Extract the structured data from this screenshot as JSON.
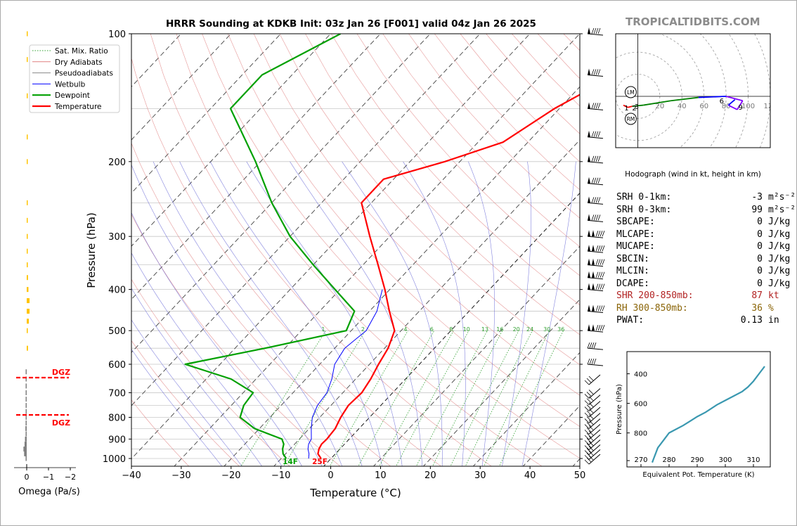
{
  "title": "HRRR Sounding at KDKB Init: 03z Jan 26 [F001] valid 04z Jan 26 2025",
  "brand": "TROPICALTIDBITS.COM",
  "axes": {
    "xlabel": "Temperature (°C)",
    "ylabel": "Pressure (hPa)",
    "x_ticks": [
      "−40",
      "−30",
      "−20",
      "−10",
      "0",
      "10",
      "20",
      "30",
      "40",
      "50"
    ],
    "y_ticks": [
      "100",
      "200",
      "300",
      "400",
      "500",
      "600",
      "700",
      "800",
      "900",
      "1000"
    ]
  },
  "legend": [
    "Sat. Mix. Ratio",
    "Dry Adiabats",
    "Pseudoadiabats",
    "Wetbulb",
    "Dewpoint",
    "Temperature"
  ],
  "surface_labels": {
    "dewpoint": "14F",
    "temperature": "25F"
  },
  "mixing_ratio_labels": [
    "1",
    "2",
    "4",
    "6",
    "8",
    "10",
    "13",
    "16",
    "20",
    "24",
    "30",
    "36"
  ],
  "omega": {
    "xlabel": "Omega (Pa/s)",
    "ticks": [
      "0",
      "−1",
      "−2"
    ],
    "dgz_label": "DGZ"
  },
  "hodograph": {
    "caption": "Hodograph (wind in kt, height in km)",
    "ring_labels": [
      "20",
      "40",
      "60",
      "80",
      "100",
      "120"
    ],
    "markers": [
      "LM",
      "RM"
    ],
    "height_labels": [
      "1",
      "2",
      "3",
      "6",
      "9"
    ]
  },
  "theta_e": {
    "xlabel": "Equivalent Pot. Temperature (K)",
    "ylabel": "Pressure (hPa)",
    "x_ticks": [
      "270",
      "280",
      "290",
      "300",
      "310"
    ],
    "y_ticks": [
      "400",
      "600",
      "800"
    ]
  },
  "stats": [
    {
      "label": "SRH 0-1km:",
      "value": "-3",
      "unit": "m²s⁻²",
      "color": "#000000"
    },
    {
      "label": "SRH 0-3km:",
      "value": "99",
      "unit": "m²s⁻²",
      "color": "#000000"
    },
    {
      "label": "SBCAPE:",
      "value": "0",
      "unit": "J/kg",
      "color": "#000000"
    },
    {
      "label": "MLCAPE:",
      "value": "0",
      "unit": "J/kg",
      "color": "#000000"
    },
    {
      "label": "MUCAPE:",
      "value": "0",
      "unit": "J/kg",
      "color": "#000000"
    },
    {
      "label": "SBCIN:",
      "value": "0",
      "unit": "J/kg",
      "color": "#000000"
    },
    {
      "label": "MLCIN:",
      "value": "0",
      "unit": "J/kg",
      "color": "#000000"
    },
    {
      "label": "DCAPE:",
      "value": "0",
      "unit": "J/kg",
      "color": "#000000"
    },
    {
      "label": "SHR 200-850mb:",
      "value": "87",
      "unit": "kt",
      "color": "#b22222"
    },
    {
      "label": "RH 300-850mb:",
      "value": "36",
      "unit": "%",
      "color": "#8b6508"
    },
    {
      "label": "PWAT:",
      "value": "0.13",
      "unit": "in",
      "color": "#000000"
    }
  ],
  "colors": {
    "temperature": "#ff0000",
    "dewpoint": "#00a000",
    "wetbulb": "#0000ff",
    "theta_e": "#3a98b0",
    "omega_up": "#ffc400",
    "omega_down": "#808080"
  },
  "chart_data": [
    {
      "type": "line",
      "name": "skew-t",
      "ylim": [
        1000,
        100
      ],
      "xlim": [
        -40,
        50
      ],
      "series": [
        {
          "name": "Temperature",
          "p": [
            1000,
            975,
            950,
            925,
            900,
            850,
            800,
            750,
            700,
            650,
            600,
            550,
            500,
            450,
            400,
            350,
            300,
            250,
            220,
            200,
            180,
            150,
            125,
            100
          ],
          "t": [
            -2,
            -3.5,
            -4.2,
            -4.6,
            -4.5,
            -4.8,
            -5.8,
            -6.5,
            -6.2,
            -7.0,
            -8.2,
            -9.3,
            -11.3,
            -16,
            -21,
            -27,
            -34,
            -42,
            -42,
            -33,
            -25,
            -21,
            -15,
            -8
          ]
        },
        {
          "name": "Dewpoint",
          "p": [
            1000,
            975,
            950,
            925,
            900,
            850,
            800,
            750,
            700,
            650,
            600,
            550,
            500,
            450,
            400,
            350,
            300,
            250,
            200,
            150,
            125,
            100
          ],
          "t": [
            -9,
            -10.5,
            -11.5,
            -12.2,
            -13.5,
            -21,
            -26,
            -27.5,
            -28,
            -35,
            -47,
            -34,
            -21,
            -23,
            -31,
            -40,
            -50,
            -60,
            -71,
            -86,
            -86,
            -78
          ]
        },
        {
          "name": "Wetbulb",
          "p": [
            1000,
            975,
            950,
            925,
            900,
            850,
            800,
            750,
            700,
            650,
            600,
            550,
            500,
            450,
            400
          ],
          "t": [
            -4.5,
            -5.3,
            -6.4,
            -7.2,
            -7.6,
            -9.6,
            -11.5,
            -12.7,
            -13.2,
            -14.8,
            -17,
            -18,
            -17,
            -18.5,
            -21.5
          ]
        }
      ]
    },
    {
      "type": "bar",
      "name": "omega",
      "p": [
        1000,
        975,
        950,
        925,
        900,
        875,
        850,
        825,
        800,
        775,
        750,
        725,
        700,
        675,
        650,
        625,
        550,
        500,
        475,
        450,
        425,
        400,
        375,
        350,
        325,
        300,
        275,
        250,
        200,
        175,
        140,
        115,
        100
      ],
      "values": [
        -0.05,
        -0.12,
        -0.15,
        -0.1,
        -0.08,
        -0.05,
        -0.06,
        -0.05,
        -0.03,
        -0.02,
        -0.02,
        -0.02,
        -0.03,
        -0.02,
        -0.02,
        -0.02,
        0.06,
        0.05,
        0.1,
        0.13,
        0.13,
        0.08,
        0.06,
        0.05,
        0.04,
        0.03,
        0.03,
        0.02,
        0.01,
        0.01,
        0.01,
        0.005,
        0.005
      ]
    },
    {
      "type": "line",
      "name": "hodograph",
      "u": [
        -13,
        -9,
        -5,
        5,
        30,
        55,
        80,
        95,
        90,
        82,
        88
      ],
      "v": [
        -8,
        -10,
        -9,
        -8,
        -4,
        -1,
        0,
        -4,
        -12,
        -8,
        -3
      ],
      "xlim": [
        -20,
        120
      ]
    },
    {
      "type": "line",
      "name": "theta-e",
      "xlim": [
        265,
        316
      ],
      "ylim": [
        1030,
        250
      ],
      "x": [
        274,
        274.5,
        275,
        276,
        278,
        280,
        282,
        285,
        287.5,
        290,
        293,
        297,
        300,
        303,
        306,
        308,
        310,
        312,
        314
      ],
      "y": [
        1000,
        975,
        950,
        900,
        850,
        800,
        780,
        750,
        720,
        690,
        660,
        610,
        580,
        550,
        520,
        490,
        450,
        400,
        350
      ]
    }
  ]
}
